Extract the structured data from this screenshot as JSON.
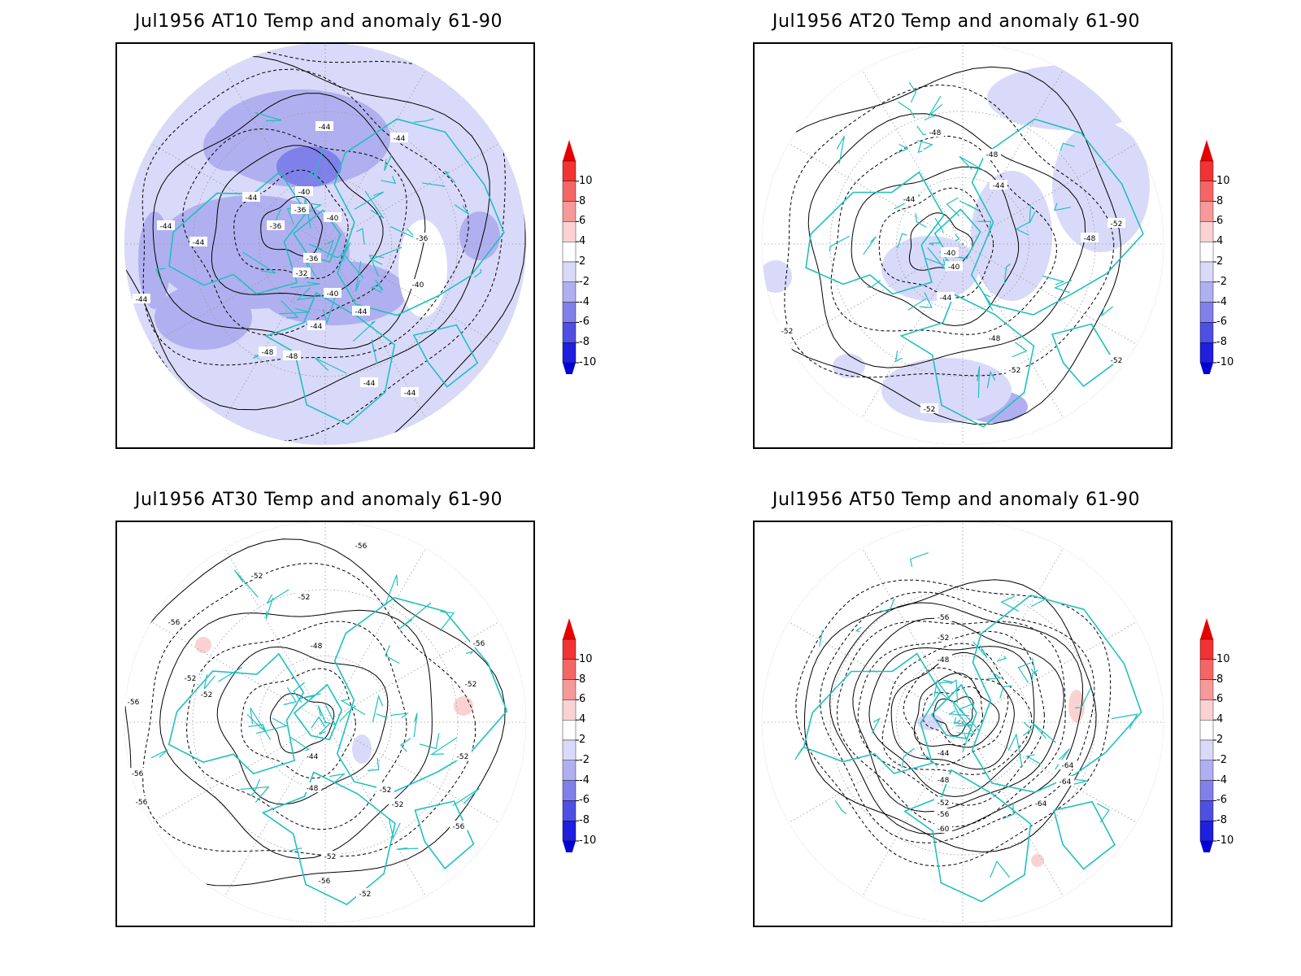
{
  "panels": [
    {
      "title": "Jul1956 AT10 Temp and anomaly 61-90",
      "base_anomaly": -2.6,
      "contour_labels": [
        "-44",
        "-44",
        "-44",
        "-44",
        "-44",
        "-44",
        "-40",
        "-40",
        "-36",
        "-36",
        "-36",
        "-36",
        "-32",
        "-40",
        "-40",
        "-44",
        "-44",
        "-48",
        "-48",
        "-44",
        "-44"
      ]
    },
    {
      "title": "Jul1956 AT20 Temp and anomaly 61-90",
      "base_anomaly": -1.2,
      "contour_labels": [
        "-48",
        "-48",
        "-44",
        "-44",
        "-40",
        "-40",
        "-44",
        "-48",
        "-52",
        "-52",
        "-52",
        "-52",
        "-48",
        "-52"
      ]
    },
    {
      "title": "Jul1956 AT30 Temp and anomaly 61-90",
      "base_anomaly": 0,
      "contour_labels": [
        "-56",
        "-52",
        "-52",
        "-56",
        "-56",
        "-56",
        "-48",
        "-52",
        "-52",
        "-44",
        "-48",
        "-52",
        "-52",
        "-52",
        "-56",
        "-52",
        "-56",
        "-52",
        "-56",
        "-56",
        "-52"
      ]
    },
    {
      "title": "Jul1956 AT50 Temp and anomaly 61-90",
      "base_anomaly": 0,
      "contour_labels": [
        "-56",
        "-52",
        "-48",
        "-44",
        "-48",
        "-52",
        "-56",
        "-60",
        "-64",
        "-64",
        "-64"
      ]
    }
  ],
  "colorbar": {
    "ticks": [
      "10",
      "8",
      "6",
      "4",
      "2",
      "-2",
      "-4",
      "-6",
      "-8",
      "-10"
    ],
    "colors": [
      "#e60000",
      "#f23333",
      "#f46666",
      "#f79999",
      "#fad2d2",
      "#ffffff",
      "#d9d9f9",
      "#b0b0f0",
      "#8080ea",
      "#4f4fe4",
      "#1f1fdd",
      "#0000d6"
    ]
  },
  "map_style": {
    "coast_color": "#20c0c0",
    "contour_color": "#000000",
    "grid_color": "#999999"
  }
}
